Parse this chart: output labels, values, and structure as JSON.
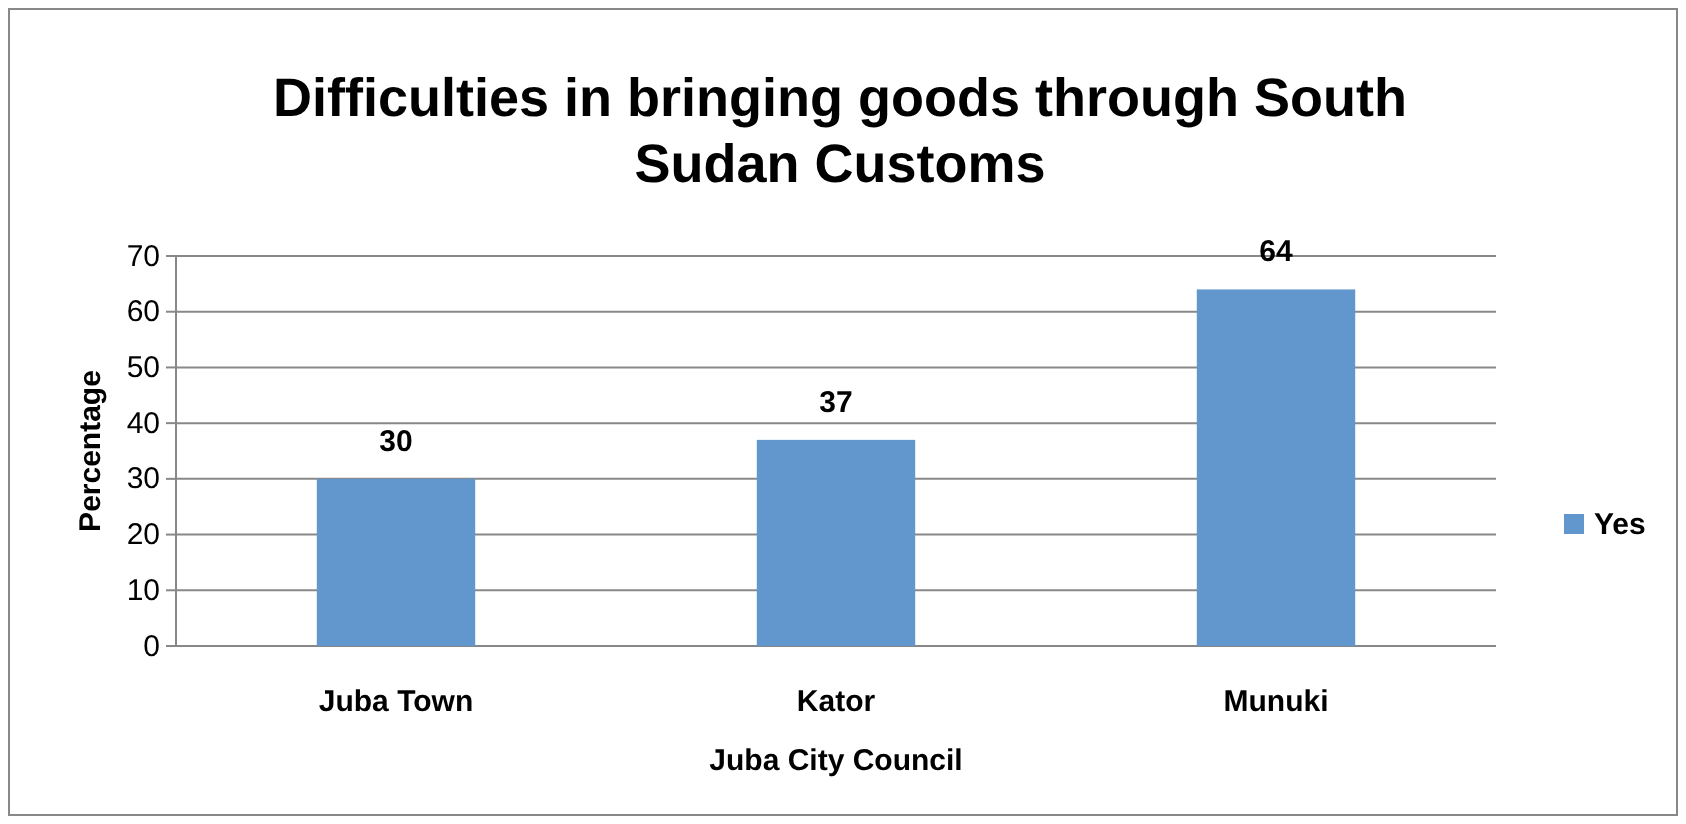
{
  "chart_data": {
    "type": "bar",
    "title": "Difficulties in bringing goods through South Sudan Customs",
    "xlabel": "Juba City Council",
    "ylabel": "Percentage",
    "categories": [
      "Juba Town",
      "Kator",
      "Munuki"
    ],
    "series": [
      {
        "name": "Yes",
        "color": "#6197cc",
        "values": [
          30,
          37,
          64
        ]
      }
    ],
    "ylim": [
      0,
      70
    ],
    "yticks": [
      0,
      10,
      20,
      30,
      40,
      50,
      60,
      70
    ],
    "grid": "y",
    "legend": "right",
    "data_labels": true
  }
}
